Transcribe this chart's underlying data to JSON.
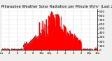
{
  "title": "Milwaukee Weather Solar Radiation per Minute W/m² (Last 24 Hours)",
  "title_fontsize": 3.8,
  "bg_color": "#f0f0f0",
  "plot_bg_color": "#ffffff",
  "grid_color": "#aaaaaa",
  "fill_color": "#ff0000",
  "line_color": "#dd0000",
  "yticks": [
    0,
    100,
    200,
    300,
    400,
    500,
    600,
    700,
    800,
    900
  ],
  "ytick_fontsize": 3.2,
  "xtick_fontsize": 2.8,
  "ymax": 950,
  "num_points": 1440,
  "dashed_vlines": [
    8.0,
    12.0
  ],
  "time_labels": [
    "12a",
    "2",
    "4",
    "6",
    "8",
    "10a",
    "12p",
    "2",
    "4",
    "6",
    "8",
    "10p",
    "12a"
  ]
}
